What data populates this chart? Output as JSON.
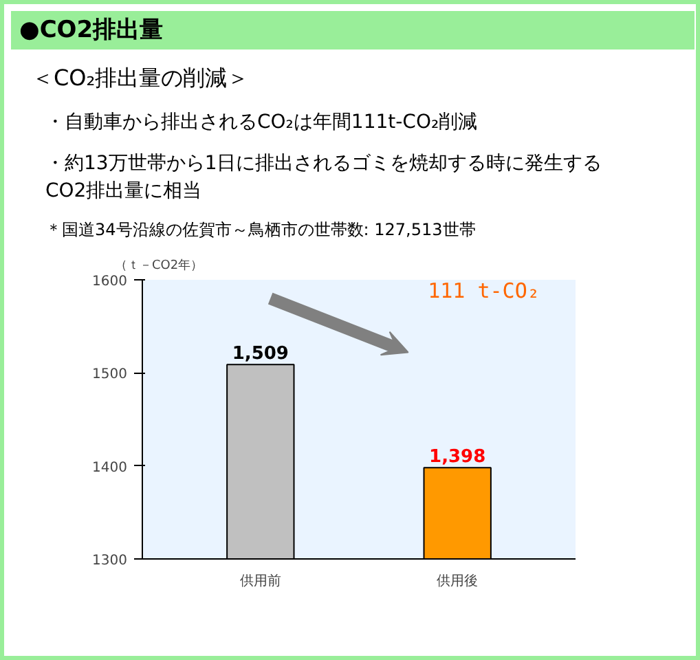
{
  "chart_data": {
    "type": "bar",
    "title": "●CO2排出量",
    "subtitle": "＜CO₂排出量の削減＞",
    "ylabel": "（ｔ－CO2年）",
    "categories": [
      "供用前",
      "供用後"
    ],
    "values": [
      1509,
      1398
    ],
    "colors": [
      "#c0c0c0",
      "#ff9900"
    ],
    "value_labels": [
      "1,509",
      "1,398"
    ],
    "ylim": [
      1300,
      1600
    ],
    "yticks": [
      1300,
      1400,
      1500,
      1600
    ],
    "grid": false,
    "annotations": [
      "・自動車から排出されるCO₂は年間111t-CO₂削減",
      "・約13万世帯から1日に排出されるゴミを焼却する時に発生するCO2排出量に相当",
      "＊国道34号沿線の佐賀市～鳥栖市の世帯数: 127,513世帯",
      "111 t-CO₂"
    ]
  }
}
